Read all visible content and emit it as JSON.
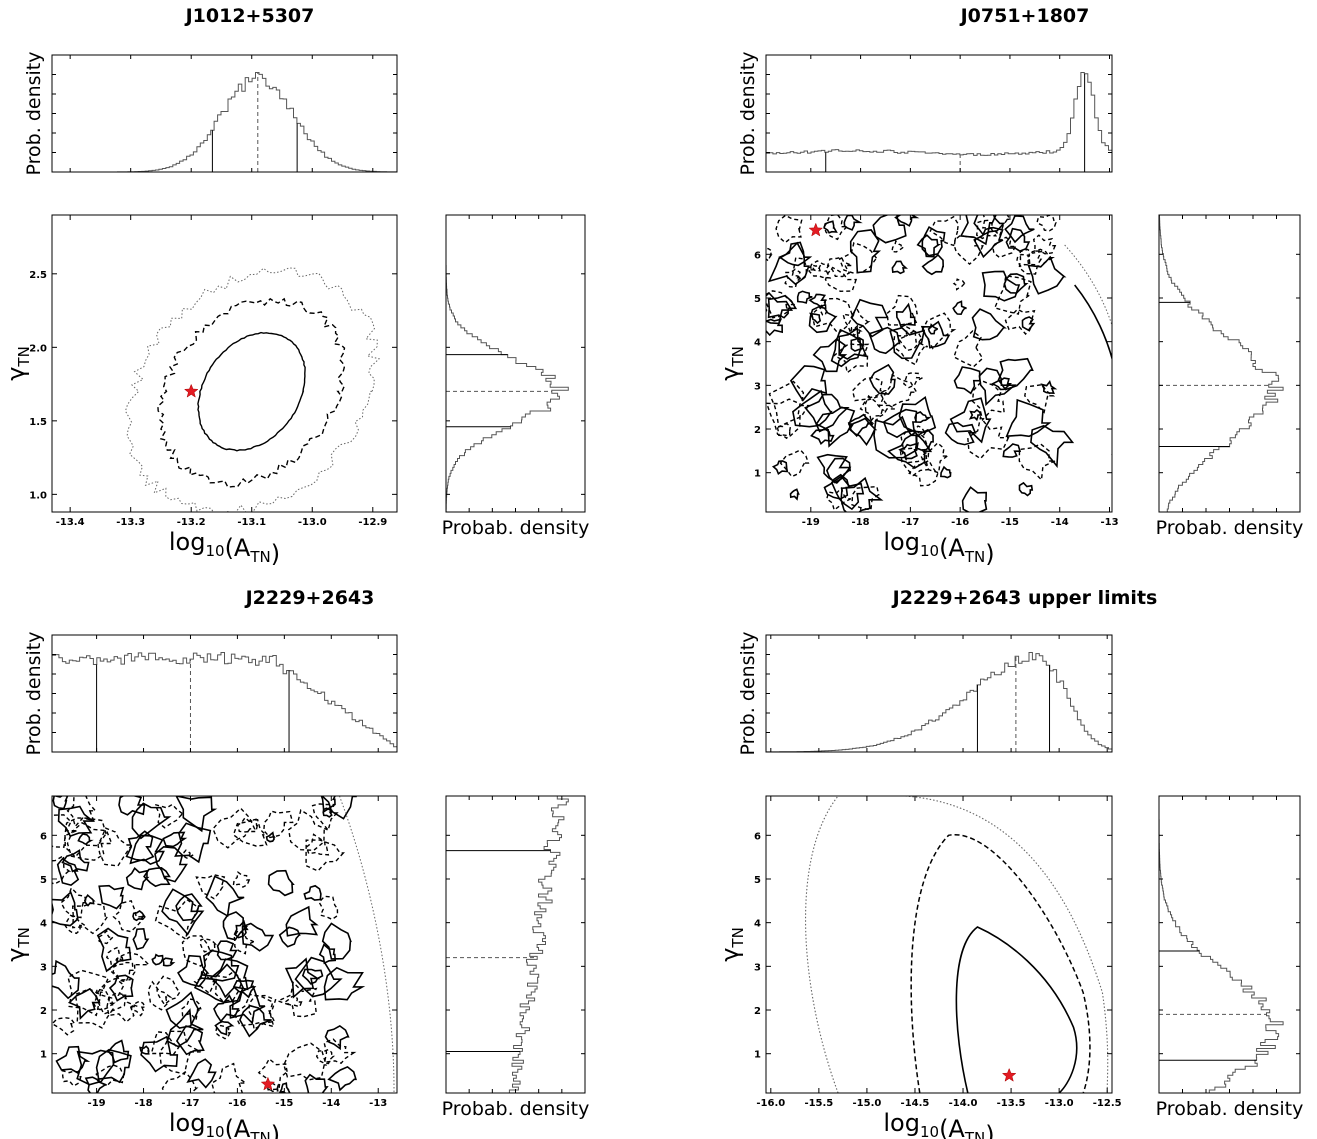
{
  "chart_data": [
    {
      "type": "corner-posterior",
      "title": "J1012+5307",
      "xlabel": "log",
      "xlabel_sub": "10",
      "xlabel_tail": "(A",
      "xlabel_tail_sub": "TN",
      "xlabel_end": ")",
      "ylabel_greek": "γ",
      "ylabel_sub": "TN",
      "marg_x_ylabel": "Prob. density",
      "marg_y_xlabel": "Probab. density",
      "xlim": [
        -13.43,
        -12.86
      ],
      "ylim": [
        0.88,
        2.9
      ],
      "xticks": [
        "-13.4",
        "-13.3",
        "-13.2",
        "-13.1",
        "-13.0",
        "-12.9"
      ],
      "xtick_values": [
        -13.4,
        -13.3,
        -13.2,
        -13.1,
        -13.0,
        -12.9
      ],
      "yticks": [
        "1.0",
        "1.5",
        "2.0",
        "2.5"
      ],
      "ytick_values": [
        1.0,
        1.5,
        2.0,
        2.5
      ],
      "star": {
        "x": -13.2,
        "y": 1.7
      },
      "contours": {
        "shape": "ellipse",
        "center": [
          -13.1,
          1.7
        ],
        "levels": [
          {
            "style": "solid",
            "rx": 0.085,
            "ry": 0.4
          },
          {
            "style": "dashed",
            "rx": 0.145,
            "ry": 0.62
          },
          {
            "style": "dotted",
            "rx": 0.195,
            "ry": 0.82
          }
        ]
      },
      "marginal_x": {
        "shape": "gaussian",
        "mean": -13.09,
        "sd": 0.06,
        "median": -13.09,
        "lower": -13.165,
        "upper": -13.025
      },
      "marginal_y": {
        "shape": "gaussian",
        "mean": 1.7,
        "sd": 0.22,
        "median": 1.7,
        "lower": 1.46,
        "upper": 1.95
      }
    },
    {
      "type": "corner-posterior",
      "title": "J0751+1807",
      "xlabel": "log",
      "xlabel_sub": "10",
      "xlabel_tail": "(A",
      "xlabel_tail_sub": "TN",
      "xlabel_end": ")",
      "ylabel_greek": "γ",
      "ylabel_sub": "TN",
      "marg_x_ylabel": "Prob. density",
      "marg_y_xlabel": "Probab. density",
      "xlim": [
        -19.9,
        -12.95
      ],
      "ylim": [
        0.1,
        6.9
      ],
      "xticks": [
        "-19",
        "-18",
        "-17",
        "-16",
        "-15",
        "-14",
        "-13"
      ],
      "xtick_values": [
        -19,
        -18,
        -17,
        -16,
        -15,
        -14,
        -13
      ],
      "yticks": [
        "1",
        "2",
        "3",
        "4",
        "5",
        "6"
      ],
      "ytick_values": [
        1,
        2,
        3,
        4,
        5,
        6
      ],
      "star": {
        "x": -18.9,
        "y": 6.55
      },
      "contours": {
        "shape": "noise",
        "edge": -13.7
      },
      "marginal_x": {
        "shape": "flat-peak",
        "peak": -13.5,
        "median": -16.0,
        "lower": -18.7,
        "upper": -13.5
      },
      "marginal_y": {
        "shape": "gaussian",
        "mean": 2.9,
        "sd": 1.2,
        "median": 3.0,
        "lower": 1.6,
        "upper": 4.9
      }
    },
    {
      "type": "corner-posterior",
      "title": "J2229+2643",
      "xlabel": "log",
      "xlabel_sub": "10",
      "xlabel_tail": "(A",
      "xlabel_tail_sub": "TN",
      "xlabel_end": ")",
      "ylabel_greek": "γ",
      "ylabel_sub": "TN",
      "marg_x_ylabel": "Prob. density",
      "marg_y_xlabel": "Probab. density",
      "xlim": [
        -19.95,
        -12.6
      ],
      "ylim": [
        0.1,
        6.9
      ],
      "xticks": [
        "-19",
        "-18",
        "-17",
        "-16",
        "-15",
        "-14",
        "-13"
      ],
      "xtick_values": [
        -19,
        -18,
        -17,
        -16,
        -15,
        -14,
        -13
      ],
      "yticks": [
        "1",
        "2",
        "3",
        "4",
        "5",
        "6"
      ],
      "ytick_values": [
        1,
        2,
        3,
        4,
        5,
        6
      ],
      "star": {
        "x": -15.35,
        "y": 0.3
      },
      "contours": {
        "shape": "noise",
        "edge": -13.4
      },
      "marginal_x": {
        "shape": "flat-fall",
        "median": -17.0,
        "lower": -19.0,
        "upper": -14.9
      },
      "marginal_y": {
        "shape": "rising",
        "median": 3.2,
        "lower": 1.05,
        "upper": 5.65
      }
    },
    {
      "type": "corner-posterior",
      "title": "J2229+2643 upper limits",
      "xlabel": "log",
      "xlabel_sub": "10",
      "xlabel_tail": "(A",
      "xlabel_tail_sub": "TN",
      "xlabel_end": ")",
      "ylabel_greek": "γ",
      "ylabel_sub": "TN",
      "marg_x_ylabel": "Prob. density",
      "marg_y_xlabel": "Probab. density",
      "xlim": [
        -16.05,
        -12.45
      ],
      "ylim": [
        0.1,
        6.9
      ],
      "xticks": [
        "-16.0",
        "-15.5",
        "-15.0",
        "-14.5",
        "-14.0",
        "-13.5",
        "-13.0",
        "-12.5"
      ],
      "xtick_values": [
        -16.0,
        -15.5,
        -15.0,
        -14.5,
        -14.0,
        -13.5,
        -13.0,
        -12.5
      ],
      "yticks": [
        "1",
        "2",
        "3",
        "4",
        "5",
        "6"
      ],
      "ytick_values": [
        1,
        2,
        3,
        4,
        5,
        6
      ],
      "star": {
        "x": -13.52,
        "y": 0.5
      },
      "contours": {
        "shape": "banana"
      },
      "marginal_x": {
        "shape": "skew",
        "peak": -13.2,
        "median": -13.45,
        "lower": -13.85,
        "upper": -13.1
      },
      "marginal_y": {
        "shape": "gaussian",
        "mean": 1.6,
        "sd": 1.2,
        "median": 1.9,
        "lower": 0.85,
        "upper": 3.35
      }
    }
  ],
  "colors": {
    "star": "#e31b23",
    "line": "#000000",
    "hist": "#555555"
  }
}
